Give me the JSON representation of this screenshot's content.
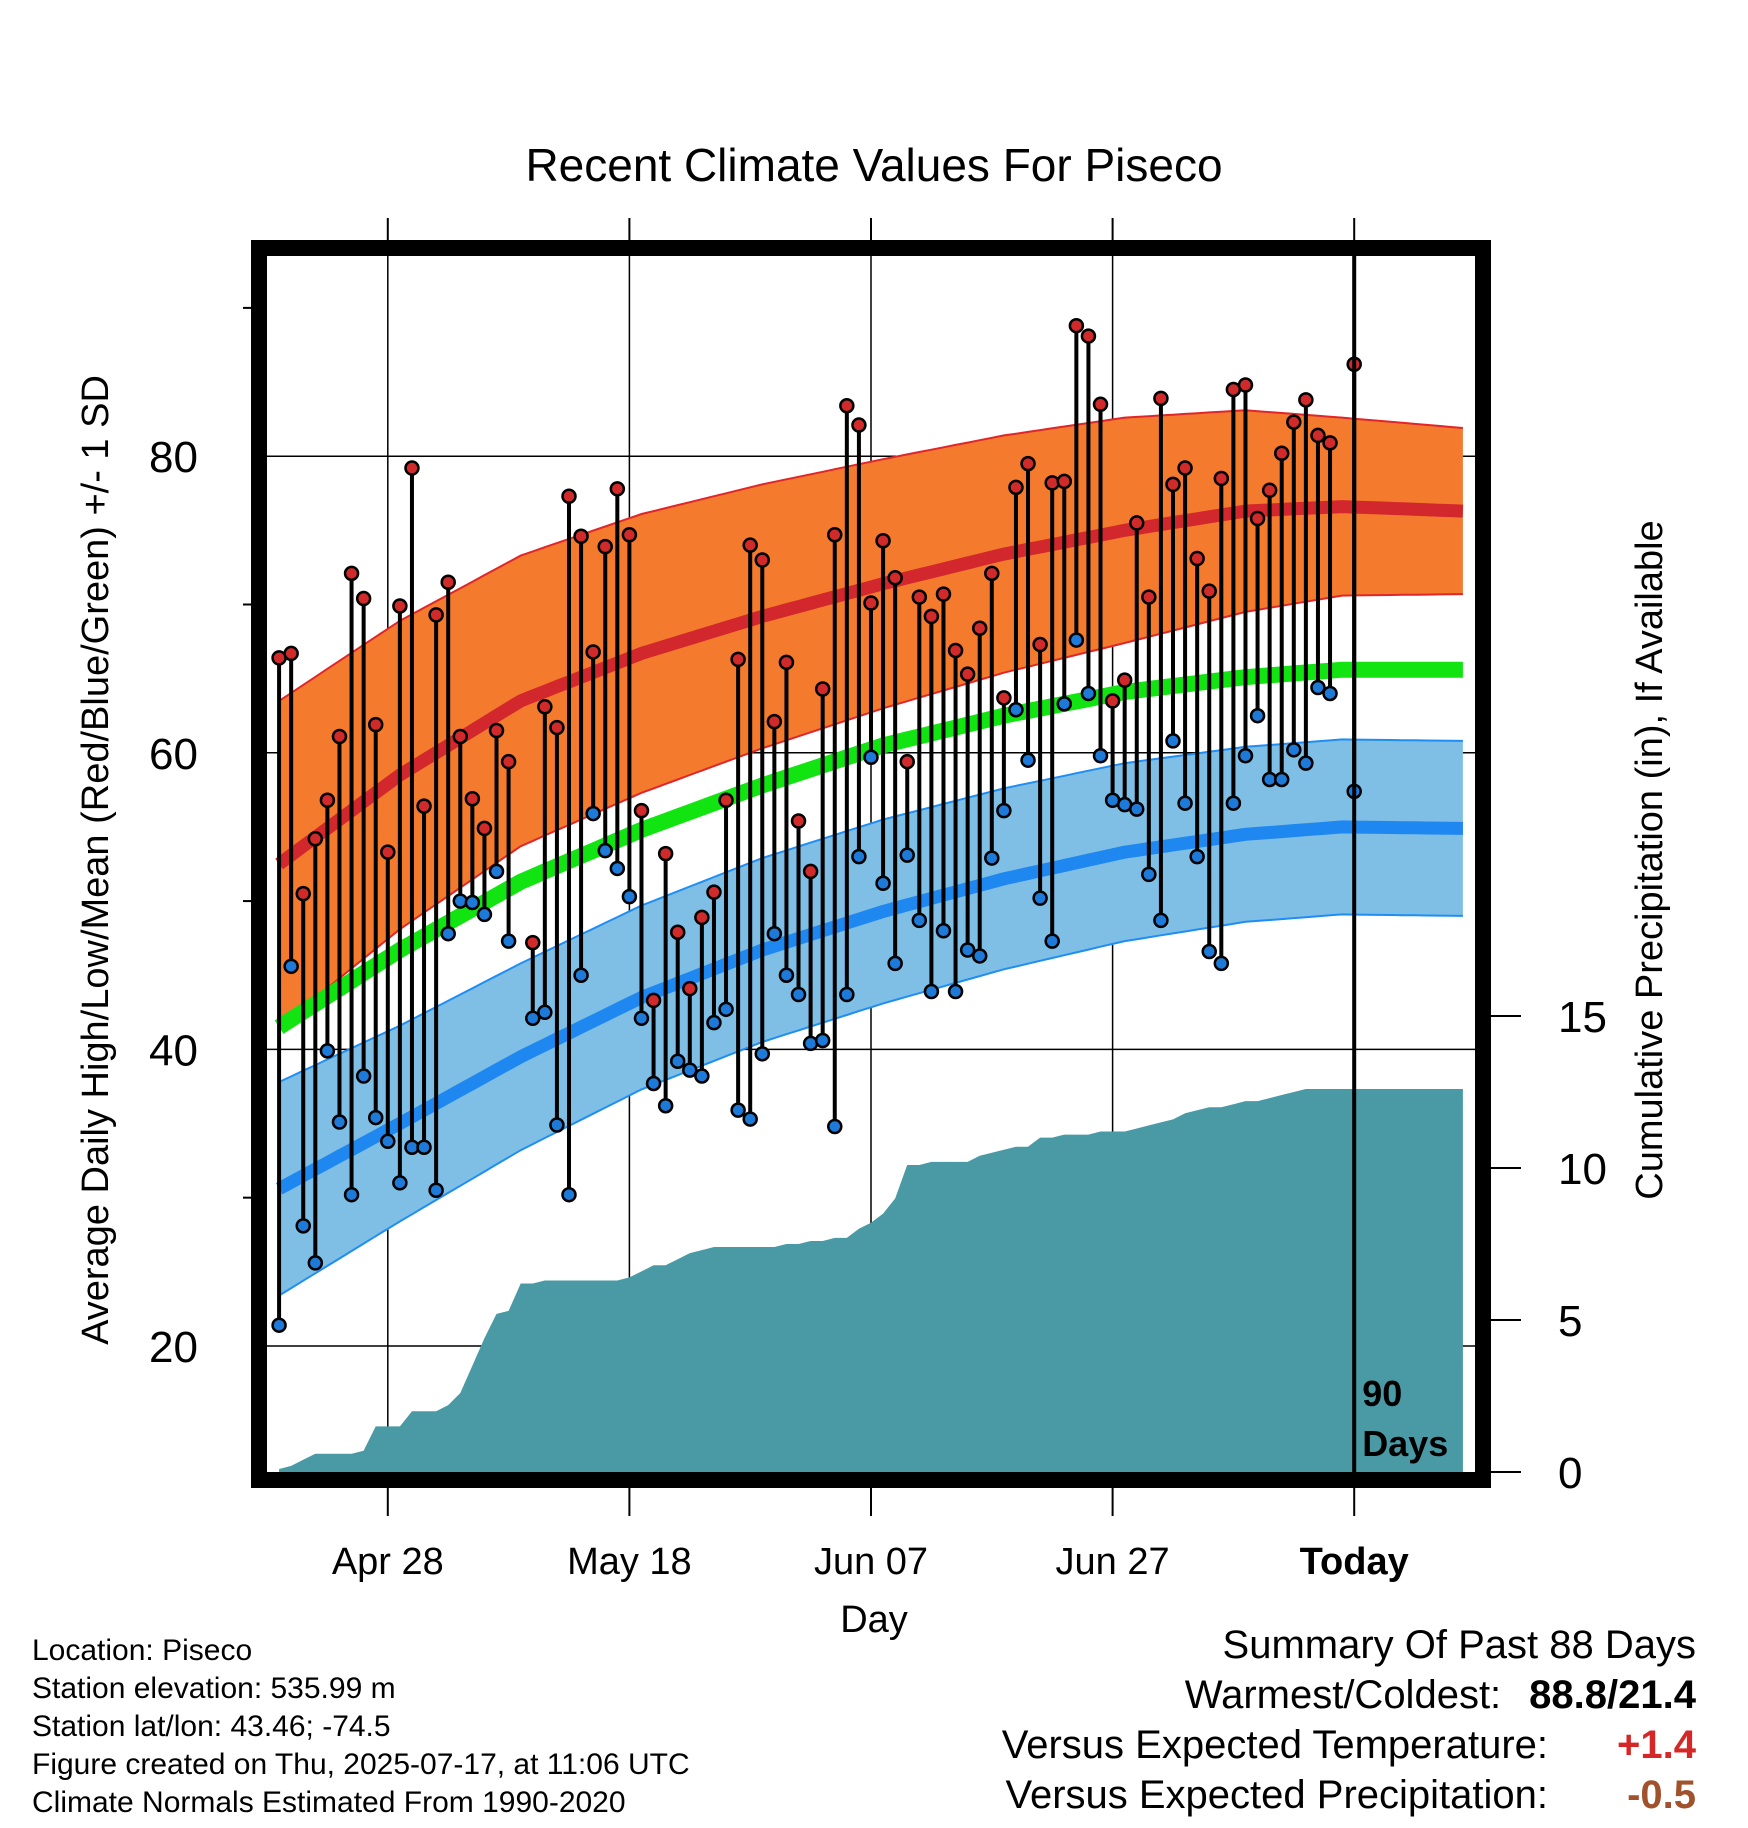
{
  "chart_data": {
    "type": "line",
    "title": "Recent Climate Values For Piseco",
    "xlabel": "Day",
    "ylabel_left": "Average Daily High/Low/Mean (Red/Blue/Green) +/- 1 SD",
    "ylabel_right": "Cumulative Precipitation (in), If Available",
    "xlim": [
      -1,
      99
    ],
    "ylim": [
      11.5,
      93.5
    ],
    "y2lim": [
      0,
      40
    ],
    "x_ticks": [
      {
        "x": 9,
        "label": "Apr 28"
      },
      {
        "x": 29,
        "label": "May 18"
      },
      {
        "x": 49,
        "label": "Jun 07"
      },
      {
        "x": 69,
        "label": "Jun 27"
      },
      {
        "x": 89,
        "label": "Today"
      }
    ],
    "y_ticks": [
      20,
      40,
      60,
      80
    ],
    "y2_ticks": [
      0,
      5,
      10,
      15
    ],
    "grid": true,
    "today_x": 89,
    "window_label": [
      "90",
      "Days"
    ],
    "colors": {
      "high_band": "#f47a2e",
      "high_edge": "#e0262a",
      "high_mean": "#d2272c",
      "low_band": "#7fbfe6",
      "low_edge": "#1e8ef5",
      "low_mean": "#1e88f0",
      "mean": "#11e411",
      "precip": "#4a9aa5",
      "high_dot": "#d02a2a",
      "low_dot": "#1e7ad8"
    },
    "normals": {
      "x": [
        0,
        10,
        20,
        30,
        40,
        50,
        60,
        70,
        80,
        88,
        98
      ],
      "high_mean": [
        52.5,
        58.5,
        63.5,
        66.7,
        69.2,
        71.4,
        73.4,
        75.0,
        76.3,
        76.6,
        76.3
      ],
      "high_sd": [
        11,
        10.4,
        9.8,
        9.4,
        8.9,
        8.4,
        8.0,
        7.6,
        6.8,
        6.0,
        5.6
      ],
      "low_mean": [
        30.6,
        35.0,
        39.5,
        43.5,
        46.7,
        49.3,
        51.5,
        53.3,
        54.5,
        55.0,
        54.9
      ],
      "low_sd": [
        7.2,
        6.6,
        6.3,
        6.2,
        6.2,
        6.2,
        6.1,
        6.0,
        5.9,
        5.9,
        5.9
      ],
      "mean": [
        41.5,
        46.7,
        51.3,
        54.8,
        57.8,
        60.5,
        62.5,
        64.1,
        65.1,
        65.6,
        65.6
      ]
    },
    "series": [
      {
        "name": "High",
        "x": [
          0,
          1,
          2,
          3,
          4,
          5,
          6,
          7,
          8,
          9,
          10,
          11,
          12,
          13,
          14,
          15,
          16,
          17,
          18,
          19,
          21,
          22,
          23,
          24,
          25,
          26,
          27,
          28,
          29,
          30,
          31,
          32,
          33,
          34,
          35,
          36,
          37,
          38,
          39,
          40,
          41,
          42,
          43,
          44,
          45,
          46,
          47,
          48,
          49,
          50,
          51,
          52,
          53,
          54,
          55,
          56,
          57,
          58,
          59,
          60,
          61,
          62,
          63,
          64,
          65,
          66,
          67,
          68,
          69,
          70,
          71,
          72,
          73,
          74,
          75,
          76,
          77,
          78,
          79,
          80,
          81,
          82,
          83,
          84,
          85,
          86,
          87,
          89
        ],
        "values": [
          66.4,
          66.7,
          50.5,
          54.2,
          56.8,
          61.1,
          72.1,
          70.4,
          61.9,
          53.3,
          69.9,
          79.2,
          56.4,
          69.3,
          71.5,
          61.1,
          56.9,
          54.9,
          61.5,
          59.4,
          47.2,
          63.1,
          61.7,
          77.3,
          74.6,
          66.8,
          73.9,
          77.8,
          74.7,
          56.1,
          43.3,
          53.2,
          47.9,
          44.1,
          48.9,
          50.6,
          56.8,
          66.3,
          74.0,
          73.0,
          62.1,
          66.1,
          55.4,
          52.0,
          64.3,
          74.7,
          83.4,
          82.1,
          70.1,
          74.3,
          71.8,
          59.4,
          70.5,
          69.2,
          70.7,
          66.9,
          65.3,
          68.4,
          72.1,
          63.7,
          77.9,
          79.5,
          67.3,
          78.2,
          78.3,
          88.8,
          88.1,
          83.5,
          63.5,
          64.9,
          75.5,
          70.5,
          83.9,
          78.1,
          79.2,
          73.1,
          70.9,
          78.5,
          84.5,
          84.8,
          75.8,
          77.7,
          80.2,
          82.3,
          83.8,
          81.4,
          80.9,
          86.2
        ]
      },
      {
        "name": "Low",
        "x": [
          0,
          1,
          2,
          3,
          4,
          5,
          6,
          7,
          8,
          9,
          10,
          11,
          12,
          13,
          14,
          15,
          16,
          17,
          18,
          19,
          21,
          22,
          23,
          24,
          25,
          26,
          27,
          28,
          29,
          30,
          31,
          32,
          33,
          34,
          35,
          36,
          37,
          38,
          39,
          40,
          41,
          42,
          43,
          44,
          45,
          46,
          47,
          48,
          49,
          50,
          51,
          52,
          53,
          54,
          55,
          56,
          57,
          58,
          59,
          60,
          61,
          62,
          63,
          64,
          65,
          66,
          67,
          68,
          69,
          70,
          71,
          72,
          73,
          74,
          75,
          76,
          77,
          78,
          79,
          80,
          81,
          82,
          83,
          84,
          85,
          86,
          87,
          89
        ],
        "values": [
          21.4,
          45.6,
          28.1,
          25.6,
          39.9,
          35.1,
          30.2,
          38.2,
          35.4,
          33.8,
          31.0,
          33.4,
          33.4,
          30.5,
          47.8,
          50.0,
          49.9,
          49.1,
          52.0,
          47.3,
          42.1,
          42.5,
          34.9,
          30.2,
          45.0,
          55.9,
          53.4,
          52.2,
          50.3,
          42.1,
          37.7,
          36.2,
          39.2,
          38.6,
          38.2,
          41.8,
          42.7,
          35.9,
          35.3,
          39.7,
          47.8,
          45.0,
          43.7,
          40.4,
          40.6,
          34.8,
          43.7,
          53.0,
          59.7,
          51.2,
          45.8,
          53.1,
          48.7,
          43.9,
          48.0,
          43.9,
          46.7,
          46.3,
          52.9,
          56.1,
          62.9,
          59.5,
          50.2,
          47.3,
          63.3,
          67.6,
          64.0,
          59.8,
          56.8,
          56.5,
          56.2,
          51.8,
          48.7,
          60.8,
          56.6,
          53.0,
          46.6,
          45.8,
          56.6,
          59.8,
          62.5,
          58.2,
          58.2,
          60.2,
          59.3,
          64.4,
          64.0,
          57.4
        ]
      },
      {
        "name": "Cumulative Precipitation",
        "type": "area",
        "x": [
          0,
          1,
          2,
          3,
          4,
          5,
          6,
          7,
          8,
          9,
          10,
          11,
          12,
          13,
          14,
          15,
          16,
          17,
          18,
          19,
          20,
          21,
          22,
          23,
          24,
          25,
          26,
          27,
          28,
          29,
          30,
          31,
          32,
          33,
          34,
          35,
          36,
          37,
          38,
          39,
          40,
          41,
          42,
          43,
          44,
          45,
          46,
          47,
          48,
          49,
          50,
          51,
          52,
          53,
          54,
          55,
          56,
          57,
          58,
          59,
          60,
          61,
          62,
          63,
          64,
          65,
          66,
          67,
          68,
          69,
          70,
          71,
          72,
          73,
          74,
          75,
          76,
          77,
          78,
          79,
          80,
          81,
          82,
          83,
          84,
          85,
          86,
          87,
          88,
          89,
          98
        ],
        "values": [
          0.1,
          0.2,
          0.4,
          0.6,
          0.6,
          0.6,
          0.6,
          0.7,
          1.5,
          1.5,
          1.5,
          2.0,
          2.0,
          2.0,
          2.2,
          2.6,
          3.5,
          4.4,
          5.2,
          5.3,
          6.2,
          6.2,
          6.3,
          6.3,
          6.3,
          6.3,
          6.3,
          6.3,
          6.3,
          6.4,
          6.6,
          6.8,
          6.8,
          7.0,
          7.2,
          7.3,
          7.4,
          7.4,
          7.4,
          7.4,
          7.4,
          7.4,
          7.5,
          7.5,
          7.6,
          7.6,
          7.7,
          7.7,
          8.0,
          8.2,
          8.5,
          9.0,
          10.1,
          10.1,
          10.2,
          10.2,
          10.2,
          10.2,
          10.4,
          10.5,
          10.6,
          10.7,
          10.7,
          11.0,
          11.0,
          11.1,
          11.1,
          11.1,
          11.2,
          11.2,
          11.2,
          11.3,
          11.4,
          11.5,
          11.6,
          11.8,
          11.9,
          12.0,
          12.0,
          12.1,
          12.2,
          12.2,
          12.3,
          12.4,
          12.5,
          12.6,
          12.6,
          12.6,
          12.6,
          12.6,
          12.6
        ]
      }
    ]
  },
  "info": {
    "location": "Location: Piseco",
    "elevation": "Station elevation: 535.99 m",
    "latlon": "Station lat/lon: 43.46; -74.5",
    "created": "Figure created on Thu, 2025-07-17, at 11:06 UTC",
    "normals": "Climate Normals Estimated From 1990-2020"
  },
  "summary": {
    "header": "Summary Of Past 88 Days",
    "warmest_label": "Warmest/Coldest:",
    "warmest_value": "88.8/21.4",
    "temp_label": "Versus Expected Temperature:",
    "temp_value": "+1.4",
    "temp_color": "#d62728",
    "precip_label": "Versus Expected Precipitation:",
    "precip_value": "-0.5",
    "precip_color": "#a0522d"
  }
}
